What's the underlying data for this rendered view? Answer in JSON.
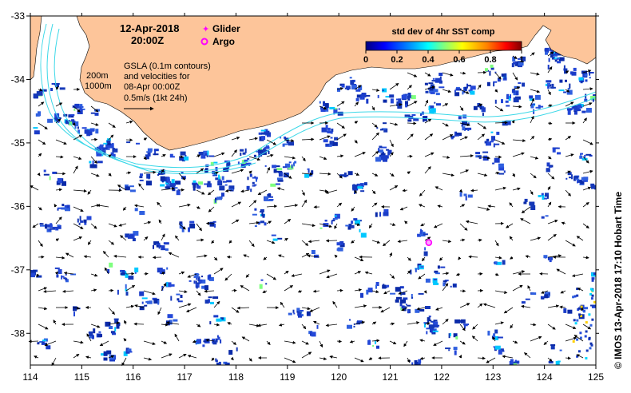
{
  "header": {
    "date": "12-Apr-2018",
    "time": "20:00Z"
  },
  "legend": {
    "glider_label": "Glider",
    "argo_label": "Argo",
    "glider_color": "#ff00ff",
    "argo_color": "#ff00ff"
  },
  "annotation": {
    "contour_200": "200m",
    "contour_1000": "1000m",
    "gsla_line1": "GSLA (0.1m contours)",
    "gsla_line2": "and velocities for",
    "gsla_line3": "08-Apr 00:00Z",
    "scale_text": "0.5m/s (1kt 24h)"
  },
  "colorbar": {
    "title": "std dev of 4hr SST comp",
    "ticks": [
      "0",
      "0.2",
      "0.4",
      "0.6",
      "0.8",
      "1"
    ],
    "colors": [
      "#00007f",
      "#0000ff",
      "#007fff",
      "#00ffff",
      "#7fff7f",
      "#ffff00",
      "#ff7f00",
      "#ff0000",
      "#7f0000"
    ]
  },
  "axes": {
    "x_ticks": [
      "114",
      "115",
      "116",
      "117",
      "118",
      "119",
      "120",
      "121",
      "122",
      "123",
      "124",
      "125"
    ],
    "y_ticks": [
      "-33",
      "-34",
      "-35",
      "-36",
      "-37",
      "-38"
    ]
  },
  "colors": {
    "land": "#fdc59a",
    "contour": "#3cd8e8",
    "data_blue": "#1f3fd0"
  },
  "argo_float": {
    "lon": 121.75,
    "lat": -36.57
  },
  "credit": "©  IMOS 13-Apr-2018 17:10 Hobart Time"
}
